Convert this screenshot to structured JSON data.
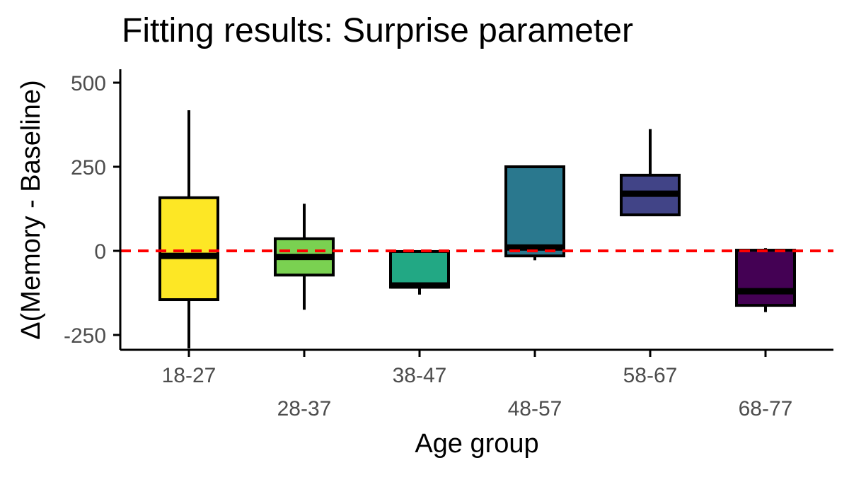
{
  "chart_data": {
    "type": "box",
    "title": "Fitting results: Surprise parameter",
    "xlabel": "Age group",
    "ylabel": "Δ(Memory - Baseline)",
    "ylim": [
      -290,
      535
    ],
    "yticks": [
      -250,
      0,
      250,
      500
    ],
    "categories": [
      "18-27",
      "28-37",
      "38-47",
      "48-57",
      "58-67",
      "68-77"
    ],
    "boxes": [
      {
        "category": "18-27",
        "min": -290,
        "q1": -145,
        "median": -15,
        "q3": 158,
        "max": 418,
        "color": "#FDE725"
      },
      {
        "category": "28-37",
        "min": -175,
        "q1": -72,
        "median": -18,
        "q3": 36,
        "max": 140,
        "color": "#7AD151"
      },
      {
        "category": "38-47",
        "min": -130,
        "q1": -108,
        "median": -103,
        "q3": -2,
        "max": -2,
        "color": "#22A884"
      },
      {
        "category": "48-57",
        "min": -28,
        "q1": -15,
        "median": 10,
        "q3": 250,
        "max": 250,
        "color": "#2A788E"
      },
      {
        "category": "58-67",
        "min": 107,
        "q1": 107,
        "median": 170,
        "q3": 225,
        "max": 362,
        "color": "#414487"
      },
      {
        "category": "68-77",
        "min": -182,
        "q1": -162,
        "median": -120,
        "q3": 2,
        "max": 8,
        "color": "#440154"
      }
    ],
    "reference_line": {
      "y": 0,
      "color": "#FF0000",
      "style": "dashed"
    },
    "grid": false,
    "legend": "none"
  }
}
